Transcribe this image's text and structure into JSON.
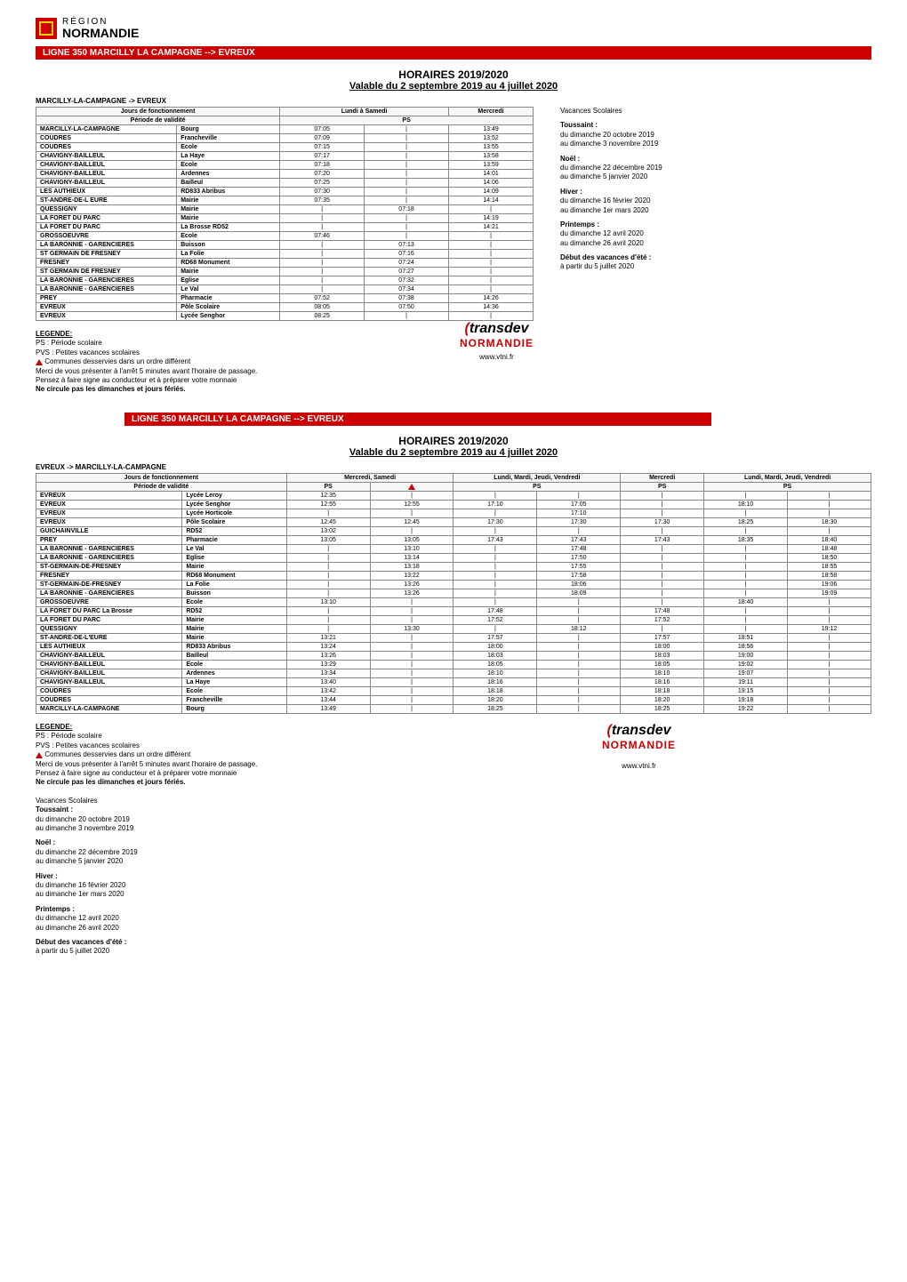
{
  "logo": {
    "region": "RÉGION",
    "name": "NORMANDIE"
  },
  "line_title": "LIGNE 350 MARCILLY LA CAMPAGNE --> EVREUX",
  "horaires_title": "HORAIRES 2019/2020",
  "valable": "Valable du 2 septembre 2019 au 4 juillet 2020",
  "t1": {
    "direction": "MARCILLY-LA-CAMPAGNE -> EVREUX",
    "head_jours": "Jours de fonctionnement",
    "head_lundi": "Lundi à Samedi",
    "head_merc": "Mercredi",
    "head_periode": "Période de validité",
    "head_ps": "PS",
    "rows": [
      {
        "stop": "MARCILLY-LA-CAMPAGNE",
        "place": "Bourg",
        "c": [
          "07:05",
          "|",
          "13:49"
        ]
      },
      {
        "stop": "COUDRES",
        "place": "Francheville",
        "c": [
          "07:09",
          "|",
          "13:52"
        ]
      },
      {
        "stop": "COUDRES",
        "place": "Ecole",
        "c": [
          "07:15",
          "|",
          "13:55"
        ]
      },
      {
        "stop": "CHAVIGNY-BAILLEUL",
        "place": "La Haye",
        "c": [
          "07:17",
          "|",
          "13:58"
        ]
      },
      {
        "stop": "CHAVIGNY-BAILLEUL",
        "place": "Ecole",
        "c": [
          "07:18",
          "|",
          "13:59"
        ]
      },
      {
        "stop": "CHAVIGNY-BAILLEUL",
        "place": "Ardennes",
        "c": [
          "07:20",
          "|",
          "14:01"
        ]
      },
      {
        "stop": "CHAVIGNY-BAILLEUL",
        "place": "Bailleul",
        "c": [
          "07:25",
          "|",
          "14:06"
        ]
      },
      {
        "stop": "LES AUTHIEUX",
        "place": "RD833 Abribus",
        "c": [
          "07:30",
          "|",
          "14:09"
        ]
      },
      {
        "stop": "ST-ANDRE-DE-L EURE",
        "place": "Mairie",
        "c": [
          "07:35",
          "|",
          "14:14"
        ]
      },
      {
        "stop": "QUESSIGNY",
        "place": "Mairie",
        "c": [
          "|",
          "07:18",
          "|"
        ]
      },
      {
        "stop": "LA FORET DU PARC",
        "place": "Mairie",
        "c": [
          "|",
          "|",
          "14:19"
        ]
      },
      {
        "stop": "LA FORET DU PARC",
        "place": "La Brosse RD52",
        "c": [
          "|",
          "|",
          "14:21"
        ]
      },
      {
        "stop": "GROSSOEUVRE",
        "place": "Ecole",
        "c": [
          "07:46",
          "|",
          "|"
        ]
      },
      {
        "stop": "LA BARONNIE - GARENCIERES",
        "place": "Buisson",
        "c": [
          "|",
          "07:13",
          "|"
        ]
      },
      {
        "stop": "ST GERMAIN DE FRESNEY",
        "place": "La Folie",
        "c": [
          "|",
          "07:16",
          "|"
        ]
      },
      {
        "stop": "FRESNEY",
        "place": "RD68 Monument",
        "c": [
          "|",
          "07:24",
          "|"
        ]
      },
      {
        "stop": "ST GERMAIN DE FRESNEY",
        "place": "Mairie",
        "c": [
          "|",
          "07:27",
          "|"
        ]
      },
      {
        "stop": "LA BARONNIE - GARENCIERES",
        "place": "Eglise",
        "c": [
          "|",
          "07:32",
          "|"
        ]
      },
      {
        "stop": "LA BARONNIE - GARENCIERES",
        "place": "Le Val",
        "c": [
          "|",
          "07:34",
          "|"
        ]
      },
      {
        "stop": "PREY",
        "place": "Pharmacie",
        "c": [
          "07:52",
          "07:38",
          "14:26"
        ]
      },
      {
        "stop": "EVREUX",
        "place": "Pôle Scolaire",
        "c": [
          "08:05",
          "07:50",
          "14:36"
        ]
      },
      {
        "stop": "EVREUX",
        "place": "Lycée Senghor",
        "c": [
          "08:25",
          "|",
          "|"
        ]
      }
    ]
  },
  "side": {
    "vac": "Vacances Scolaires",
    "toussaint": {
      "h": "Toussaint :",
      "l1": "du dimanche 20 octobre 2019",
      "l2": "au dimanche 3 novembre 2019"
    },
    "noel": {
      "h": "Noël :",
      "l1": "du dimanche 22 décembre 2019",
      "l2": "au dimanche 5 janvier 2020"
    },
    "hiver": {
      "h": "Hiver :",
      "l1": "du dimanche 16 février 2020",
      "l2": "au dimanche 1er mars 2020"
    },
    "printemps": {
      "h": "Printemps :",
      "l1": "du dimanche 12 avril 2020",
      "l2": "au dimanche 26 avril 2020"
    },
    "ete": {
      "h": "Début des vacances d'été :",
      "l1": "à partir du 5 juillet 2020"
    }
  },
  "legend": {
    "h": "LEGENDE:",
    "ps": "PS : Période scolaire",
    "pvs": "PVS : Petites vacances scolaires",
    "communes": " Communes desservies dans un ordre différent",
    "merci": "Merci de vous présenter à l'arrêt 5 minutes avant l'horaire de passage.",
    "pensez": "Pensez à faire signe au conducteur et à préparer votre monnaie",
    "necircule": "Ne circule pas les dimanches et jours fériés."
  },
  "transdev": {
    "brand": "transdev",
    "norm": "NORMANDIE",
    "www": "www.vtni.fr"
  },
  "t2": {
    "direction": "EVREUX -> MARCILLY-LA-CAMPAGNE",
    "head_jours": "Jours de fonctionnement",
    "head_ms": "Mercredi, Samedi",
    "head_lmjv": "Lundi, Mardi, Jeudi, Vendredi",
    "head_merc": "Mercredi",
    "head_periode": "Période de validité",
    "head_ps": "PS",
    "rows": [
      {
        "stop": "EVREUX",
        "place": "Lycée Leroy",
        "c": [
          "12:35",
          "|",
          "|",
          "|",
          "|",
          "|",
          "|"
        ]
      },
      {
        "stop": "EVREUX",
        "place": "Lycée Senghor",
        "c": [
          "12:55",
          "12:55",
          "17:10",
          "17:05",
          "|",
          "18:10",
          "|"
        ]
      },
      {
        "stop": "EVREUX",
        "place": "Lycée Horticole",
        "c": [
          "|",
          "|",
          "|",
          "17:10",
          "|",
          "|",
          "|"
        ]
      },
      {
        "stop": "EVREUX",
        "place": "Pôle Scolaire",
        "c": [
          "12:45",
          "12:45",
          "17:30",
          "17:30",
          "17:30",
          "18:25",
          "18:30"
        ]
      },
      {
        "stop": "GUICHAINVILLE",
        "place": "RD52",
        "c": [
          "13:02",
          "|",
          "|",
          "|",
          "|",
          "|",
          "|"
        ]
      },
      {
        "stop": "PREY",
        "place": "Pharmacie",
        "c": [
          "13:05",
          "13:05",
          "17:43",
          "17:43",
          "17:43",
          "18:35",
          "18:40"
        ]
      },
      {
        "stop": "LA BARONNIE - GARENCIERES",
        "place": "Le Val",
        "c": [
          "|",
          "13:10",
          "|",
          "17:48",
          "|",
          "|",
          "18:48"
        ]
      },
      {
        "stop": "LA BARONNIE - GARENCIERES",
        "place": "Eglise",
        "c": [
          "|",
          "13:14",
          "|",
          "17:50",
          "|",
          "|",
          "18:50"
        ]
      },
      {
        "stop": "ST-GERMAIN-DE-FRESNEY",
        "place": "Mairie",
        "c": [
          "|",
          "13:18",
          "|",
          "17:55",
          "|",
          "|",
          "18:55"
        ]
      },
      {
        "stop": "FRESNEY",
        "place": "RD68 Monument",
        "c": [
          "|",
          "13:22",
          "|",
          "17:58",
          "|",
          "|",
          "18:58"
        ]
      },
      {
        "stop": "ST-GERMAIN-DE-FRESNEY",
        "place": "La Folie",
        "c": [
          "|",
          "13:26",
          "|",
          "18:06",
          "|",
          "|",
          "19:06"
        ]
      },
      {
        "stop": "LA BARONNIE - GARENCIERES",
        "place": "Buisson",
        "c": [
          "|",
          "13:26",
          "|",
          "18:09",
          "|",
          "|",
          "19:09"
        ]
      },
      {
        "stop": "GROSSOEUVRE",
        "place": "Ecole",
        "c": [
          "13:10",
          "|",
          "|",
          "|",
          "|",
          "18:40",
          "|"
        ]
      },
      {
        "stop": "LA FORET DU PARC La Brosse",
        "place": "RD52",
        "c": [
          "|",
          "|",
          "17:48",
          "|",
          "17:48",
          "|",
          "|"
        ]
      },
      {
        "stop": "LA FORET DU PARC",
        "place": "Mairie",
        "c": [
          "|",
          "|",
          "17:52",
          "|",
          "17:52",
          "|",
          "|"
        ]
      },
      {
        "stop": "QUESSIGNY",
        "place": "Mairie",
        "c": [
          "|",
          "13:30",
          "|",
          "18:12",
          "|",
          "|",
          "19:12"
        ]
      },
      {
        "stop": "ST-ANDRE-DE-L'EURE",
        "place": "Mairie",
        "c": [
          "13:21",
          "|",
          "17:57",
          "|",
          "17:57",
          "18:51",
          "|"
        ]
      },
      {
        "stop": "LES AUTHIEUX",
        "place": "RD833 Abribus",
        "c": [
          "13:24",
          "|",
          "18:00",
          "|",
          "18:00",
          "18:56",
          "|"
        ]
      },
      {
        "stop": "CHAVIGNY-BAILLEUL",
        "place": "Bailleul",
        "c": [
          "13:26",
          "|",
          "18:03",
          "|",
          "18:03",
          "19:00",
          "|"
        ]
      },
      {
        "stop": "CHAVIGNY-BAILLEUL",
        "place": "Ecole",
        "c": [
          "13:29",
          "|",
          "18:05",
          "|",
          "18:05",
          "19:02",
          "|"
        ]
      },
      {
        "stop": "CHAVIGNY-BAILLEUL",
        "place": "Ardennes",
        "c": [
          "13:34",
          "|",
          "18:10",
          "|",
          "18:10",
          "19:07",
          "|"
        ]
      },
      {
        "stop": "CHAVIGNY-BAILLEUL",
        "place": "La Haye",
        "c": [
          "13:40",
          "|",
          "18:16",
          "|",
          "18:16",
          "19:11",
          "|"
        ]
      },
      {
        "stop": "COUDRES",
        "place": "Ecole",
        "c": [
          "13:42",
          "|",
          "18:18",
          "|",
          "18:18",
          "19:15",
          "|"
        ]
      },
      {
        "stop": "COUDRES",
        "place": "Francheville",
        "c": [
          "13:44",
          "|",
          "18:20",
          "|",
          "18:20",
          "19:18",
          "|"
        ]
      },
      {
        "stop": "MARCILLY-LA-CAMPAGNE",
        "place": "Bourg",
        "c": [
          "13:49",
          "|",
          "18:25",
          "|",
          "18:25",
          "19:22",
          "|"
        ]
      }
    ]
  }
}
